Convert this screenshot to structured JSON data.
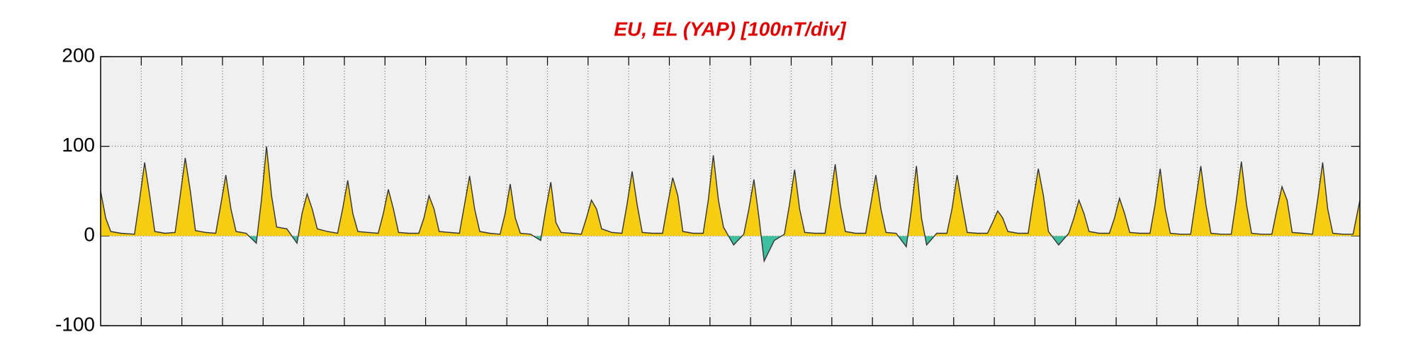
{
  "chart_data": {
    "type": "area",
    "title": "EU, EL (YAP)  [100nT/div]",
    "x": [
      0,
      3,
      6,
      12,
      20,
      23,
      26,
      29,
      32,
      38,
      44,
      47,
      50,
      53,
      56,
      62,
      68,
      71,
      74,
      77,
      80,
      86,
      92,
      95,
      98,
      101,
      104,
      110,
      116,
      119,
      122,
      125,
      128,
      134,
      140,
      143,
      146,
      149,
      152,
      158,
      164,
      167,
      170,
      173,
      176,
      182,
      188,
      191,
      194,
      197,
      200,
      206,
      212,
      215,
      218,
      221,
      224,
      230,
      236,
      239,
      242,
      245,
      248,
      254,
      260,
      263,
      266,
      269,
      272,
      278,
      284,
      287,
      290,
      293,
      296,
      302,
      308,
      311,
      314,
      317,
      320,
      326,
      332,
      335,
      338,
      341,
      344,
      350,
      356,
      359,
      362,
      365,
      368,
      374,
      380,
      383,
      386,
      389,
      392,
      398,
      404,
      407,
      410,
      413,
      416,
      422,
      428,
      431,
      434,
      437,
      440,
      446,
      452,
      455,
      458,
      461,
      464,
      470,
      476,
      479,
      482,
      485,
      488,
      494,
      500,
      503,
      506,
      509,
      512,
      518,
      524,
      527,
      530,
      533,
      536,
      542,
      548,
      551,
      554,
      557,
      560,
      566,
      572,
      575,
      578,
      581,
      584,
      590,
      596,
      599,
      602,
      605,
      608,
      614,
      620,
      623,
      626,
      629,
      632,
      638,
      644,
      647,
      650,
      653,
      656,
      662,
      668,
      671,
      674,
      677,
      680,
      686,
      692,
      695,
      698,
      701,
      704,
      710,
      716,
      719,
      722,
      725,
      728,
      734,
      740,
      744
    ],
    "values": [
      50,
      20,
      5,
      3,
      2,
      40,
      82,
      45,
      5,
      3,
      4,
      45,
      87,
      50,
      6,
      4,
      3,
      35,
      68,
      30,
      5,
      3,
      -8,
      40,
      100,
      45,
      10,
      8,
      -8,
      25,
      47,
      30,
      8,
      5,
      3,
      30,
      62,
      25,
      5,
      4,
      3,
      25,
      52,
      30,
      4,
      3,
      3,
      20,
      45,
      30,
      5,
      4,
      3,
      35,
      67,
      30,
      5,
      3,
      2,
      25,
      58,
      20,
      3,
      2,
      -5,
      30,
      60,
      15,
      4,
      3,
      2,
      20,
      40,
      30,
      8,
      4,
      3,
      35,
      72,
      35,
      4,
      3,
      3,
      35,
      65,
      45,
      5,
      3,
      3,
      40,
      90,
      40,
      10,
      -10,
      2,
      30,
      63,
      20,
      -28,
      -5,
      2,
      35,
      74,
      30,
      4,
      3,
      3,
      40,
      80,
      35,
      5,
      3,
      3,
      35,
      68,
      30,
      4,
      3,
      -12,
      30,
      78,
      20,
      -10,
      3,
      3,
      30,
      68,
      35,
      4,
      3,
      3,
      15,
      28,
      20,
      5,
      3,
      3,
      40,
      75,
      45,
      5,
      -10,
      3,
      20,
      40,
      25,
      5,
      3,
      3,
      20,
      42,
      25,
      4,
      3,
      3,
      35,
      75,
      30,
      3,
      2,
      2,
      40,
      78,
      35,
      3,
      2,
      2,
      40,
      83,
      35,
      3,
      2,
      2,
      30,
      55,
      40,
      4,
      3,
      2,
      40,
      82,
      30,
      3,
      2,
      2,
      40
    ],
    "xlim": [
      0,
      744
    ],
    "xticks": [
      24,
      48,
      72,
      96,
      120,
      144,
      168,
      192,
      216,
      240,
      264,
      288,
      312,
      336,
      360,
      384,
      408,
      432,
      456,
      480,
      504,
      528,
      552,
      576,
      600,
      624,
      648,
      672,
      696,
      720
    ],
    "ylim": [
      -100,
      200
    ],
    "yticks": [
      -100,
      0,
      100,
      200
    ],
    "grid": true,
    "color": "#333333",
    "positive_color": "#f7cd12",
    "negative_color": "#3cc0a0"
  }
}
